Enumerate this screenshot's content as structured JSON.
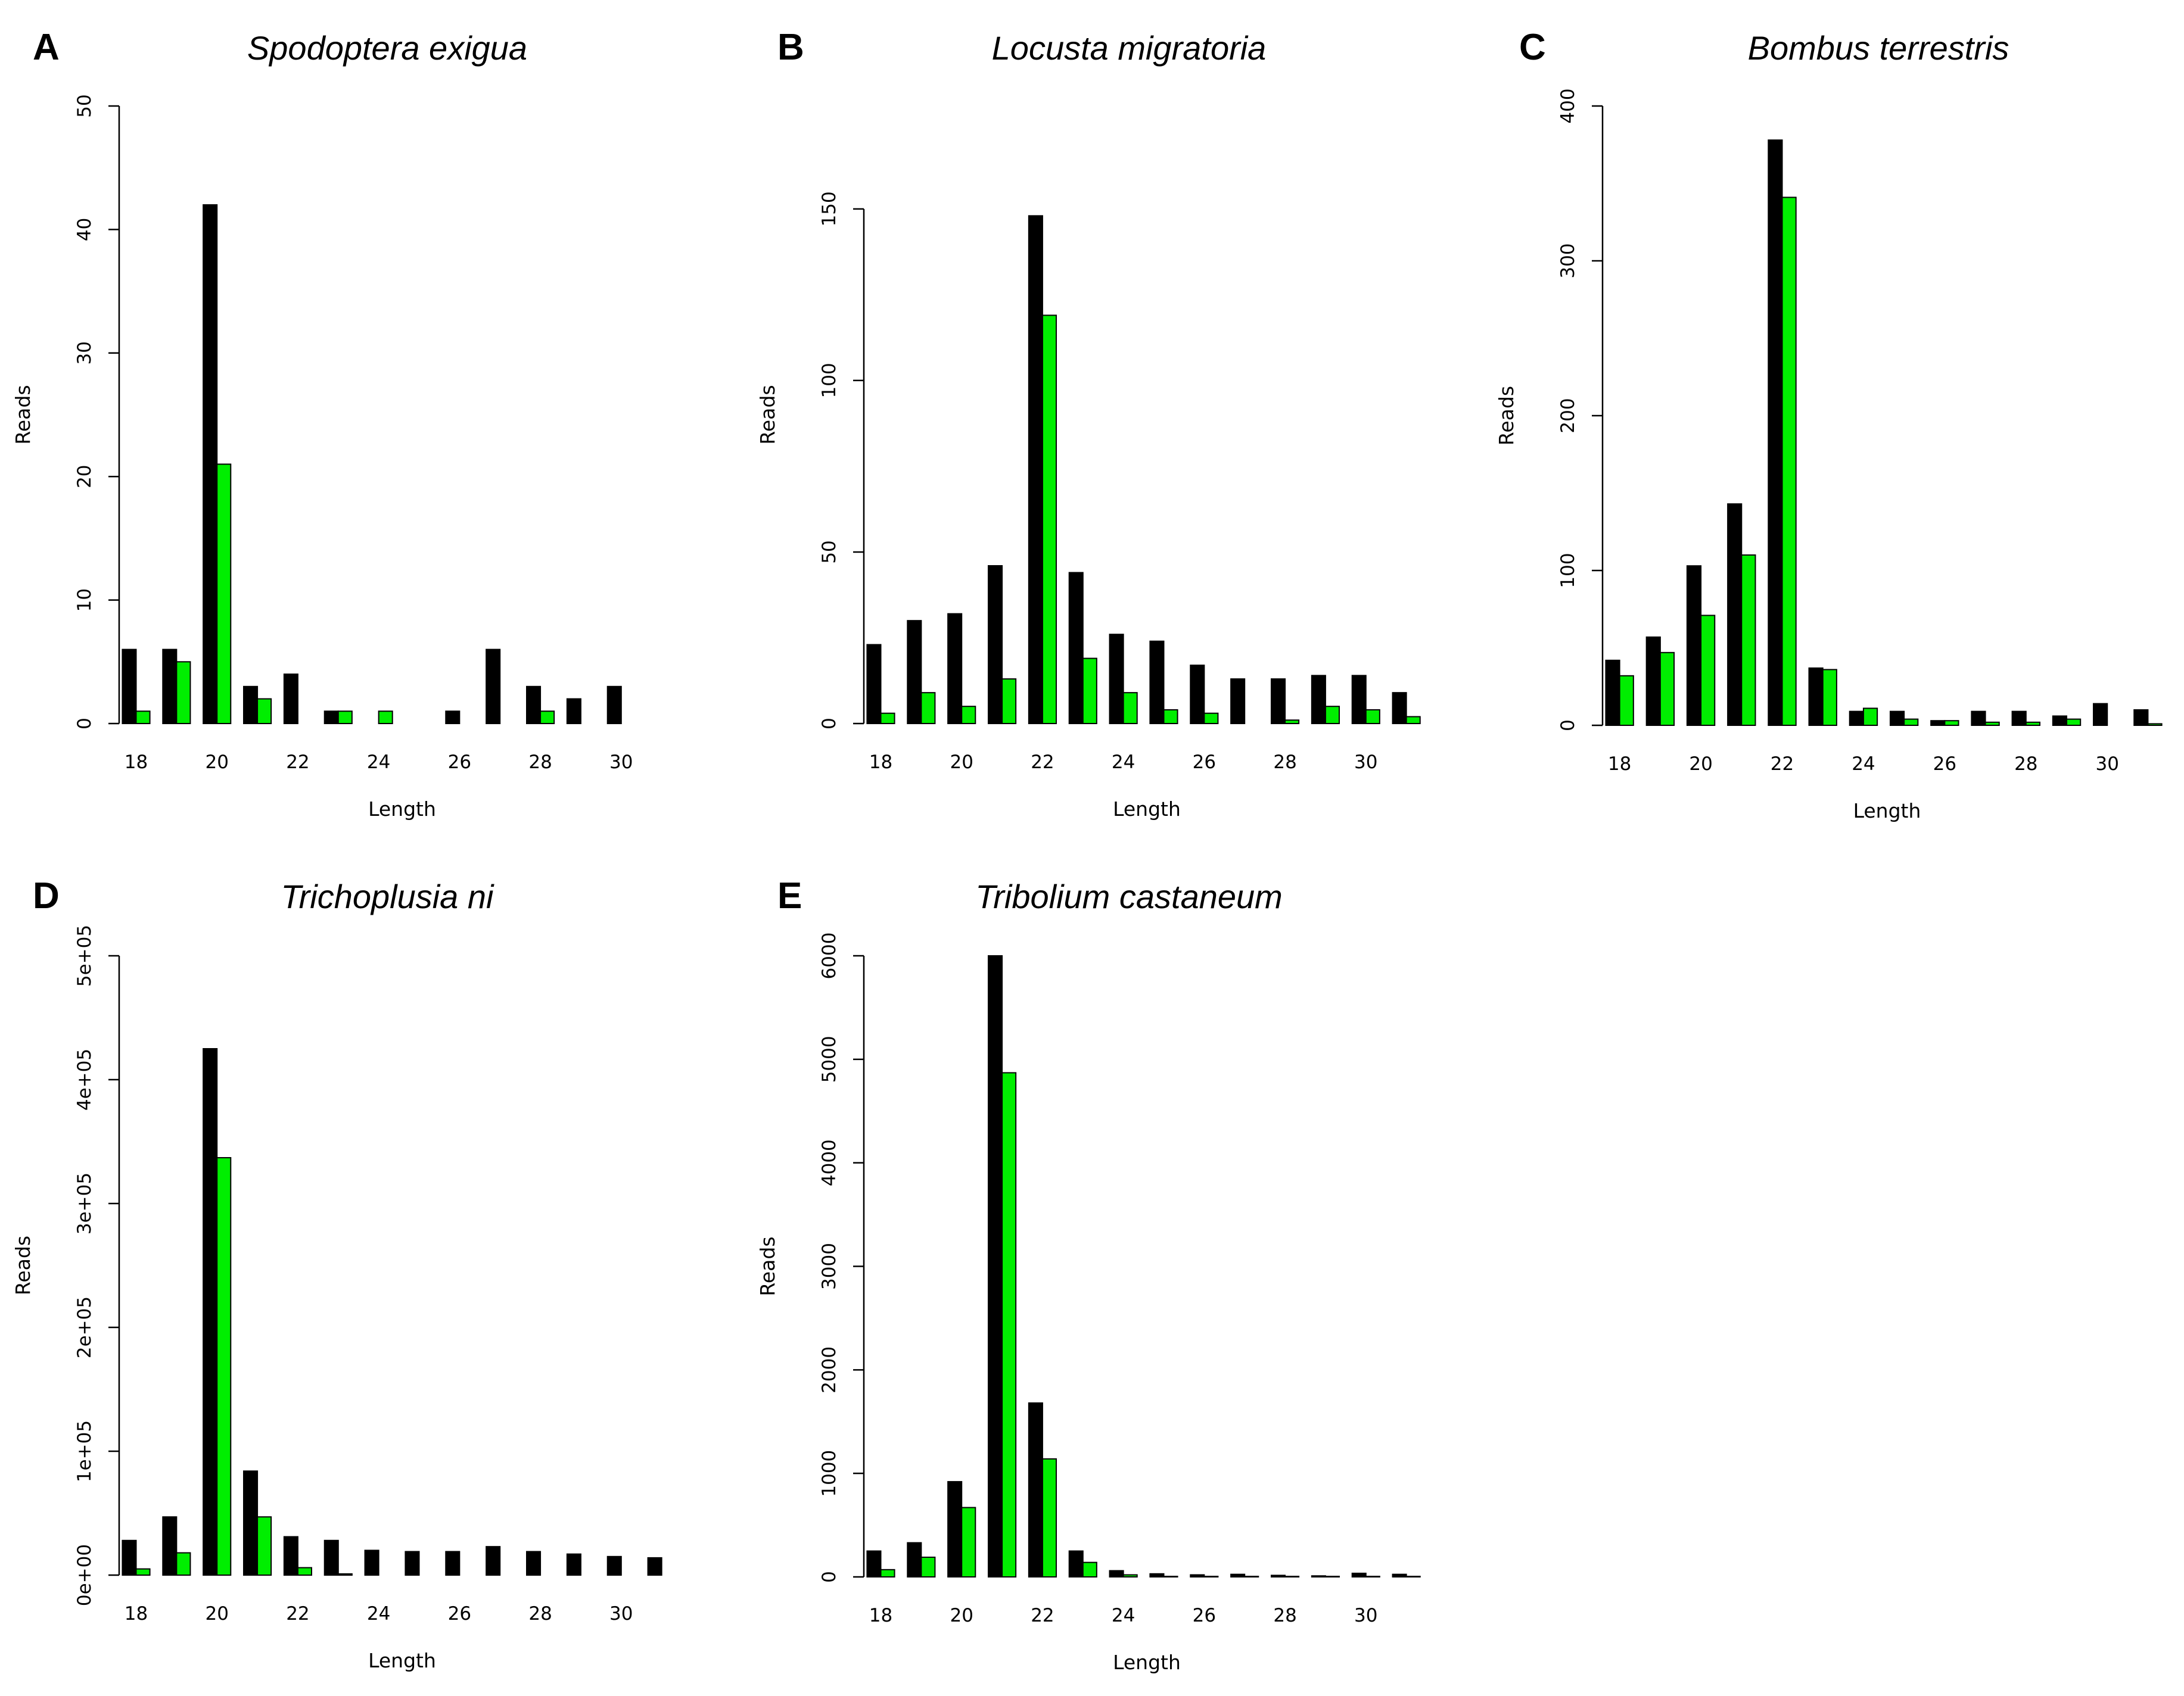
{
  "figure": {
    "series_colors": [
      "#000000",
      "#00ee00"
    ]
  },
  "chart_data": [
    {
      "type": "bar",
      "panel": "A",
      "title": "Spodoptera exigua",
      "xlabel": "Length",
      "ylabel": "Reads",
      "categories": [
        18,
        19,
        20,
        21,
        22,
        23,
        24,
        25,
        26,
        27,
        28,
        29,
        30,
        31
      ],
      "x_tick_labels": [
        "18",
        "20",
        "22",
        "24",
        "26",
        "28",
        "30"
      ],
      "y_ticks": [
        0,
        10,
        20,
        30,
        40,
        50
      ],
      "y_tick_labels": [
        "0",
        "10",
        "20",
        "30",
        "40",
        "50"
      ],
      "ylim": [
        0,
        50
      ],
      "series": [
        {
          "color": "#000000",
          "values": [
            6,
            6,
            42,
            3,
            4,
            1,
            0,
            0,
            1,
            6,
            3,
            2,
            3,
            0
          ]
        },
        {
          "color": "#00ee00",
          "values": [
            1,
            5,
            21,
            2,
            0,
            1,
            1,
            0,
            0,
            0,
            1,
            0,
            0,
            0
          ]
        }
      ],
      "grid": false
    },
    {
      "type": "bar",
      "panel": "B",
      "title": "Locusta migratoria",
      "xlabel": "Length",
      "ylabel": "Reads",
      "categories": [
        18,
        19,
        20,
        21,
        22,
        23,
        24,
        25,
        26,
        27,
        28,
        29,
        30,
        31
      ],
      "x_tick_labels": [
        "18",
        "20",
        "22",
        "24",
        "26",
        "28",
        "30"
      ],
      "y_ticks": [
        0,
        50,
        100,
        150
      ],
      "y_tick_labels": [
        "0",
        "50",
        "100",
        "150"
      ],
      "ylim": [
        0,
        180
      ],
      "series": [
        {
          "color": "#000000",
          "values": [
            23,
            30,
            32,
            46,
            148,
            44,
            26,
            24,
            17,
            13,
            13,
            14,
            14,
            9
          ]
        },
        {
          "color": "#00ee00",
          "values": [
            3,
            9,
            5,
            13,
            119,
            19,
            9,
            4,
            3,
            0,
            1,
            5,
            4,
            2
          ]
        }
      ],
      "grid": false
    },
    {
      "type": "bar",
      "panel": "C",
      "title": "Bombus terrestris",
      "xlabel": "Length",
      "ylabel": "Reads",
      "categories": [
        18,
        19,
        20,
        21,
        22,
        23,
        24,
        25,
        26,
        27,
        28,
        29,
        30,
        31
      ],
      "x_tick_labels": [
        "18",
        "20",
        "22",
        "24",
        "26",
        "28",
        "30"
      ],
      "y_ticks": [
        0,
        100,
        200,
        300,
        400
      ],
      "y_tick_labels": [
        "0",
        "100",
        "200",
        "300",
        "400"
      ],
      "ylim": [
        0,
        400
      ],
      "series": [
        {
          "color": "#000000",
          "values": [
            42,
            57,
            103,
            143,
            378,
            37,
            9,
            9,
            3,
            9,
            9,
            6,
            14,
            10
          ]
        },
        {
          "color": "#00ee00",
          "values": [
            32,
            47,
            71,
            110,
            341,
            36,
            11,
            4,
            3,
            2,
            2,
            4,
            0,
            1
          ]
        }
      ],
      "grid": false
    },
    {
      "type": "bar",
      "panel": "D",
      "title": "Trichoplusia ni",
      "xlabel": "Length",
      "ylabel": "Reads",
      "categories": [
        18,
        19,
        20,
        21,
        22,
        23,
        24,
        25,
        26,
        27,
        28,
        29,
        30,
        31
      ],
      "x_tick_labels": [
        "18",
        "20",
        "22",
        "24",
        "26",
        "28",
        "30"
      ],
      "y_ticks": [
        0,
        100000,
        200000,
        300000,
        400000,
        500000
      ],
      "y_tick_labels": [
        "0e+00",
        "1e+05",
        "2e+05",
        "3e+05",
        "4e+05",
        "5e+05"
      ],
      "ylim": [
        0,
        500000
      ],
      "series": [
        {
          "color": "#000000",
          "values": [
            28000,
            47000,
            425000,
            84000,
            31000,
            28000,
            20000,
            19000,
            19000,
            23000,
            19000,
            17000,
            15000,
            14000
          ]
        },
        {
          "color": "#00ee00",
          "values": [
            5000,
            18000,
            337000,
            47000,
            6000,
            1000,
            0,
            0,
            0,
            0,
            0,
            0,
            0,
            0
          ]
        }
      ],
      "grid": false
    },
    {
      "type": "bar",
      "panel": "E",
      "title": "Tribolium castaneum",
      "xlabel": "Length",
      "ylabel": "Reads",
      "categories": [
        18,
        19,
        20,
        21,
        22,
        23,
        24,
        25,
        26,
        27,
        28,
        29,
        30,
        31
      ],
      "x_tick_labels": [
        "18",
        "20",
        "22",
        "24",
        "26",
        "28",
        "30"
      ],
      "y_ticks": [
        0,
        1000,
        2000,
        3000,
        4000,
        5000,
        6000
      ],
      "y_tick_labels": [
        "0",
        "1000",
        "2000",
        "3000",
        "4000",
        "5000",
        "6000"
      ],
      "ylim": [
        0,
        6000
      ],
      "series": [
        {
          "color": "#000000",
          "values": [
            250,
            330,
            920,
            6000,
            1680,
            250,
            60,
            30,
            20,
            25,
            15,
            10,
            35,
            25
          ]
        },
        {
          "color": "#00ee00",
          "values": [
            70,
            190,
            670,
            4870,
            1140,
            140,
            20,
            5,
            5,
            5,
            5,
            5,
            5,
            5
          ]
        }
      ],
      "grid": false
    }
  ]
}
